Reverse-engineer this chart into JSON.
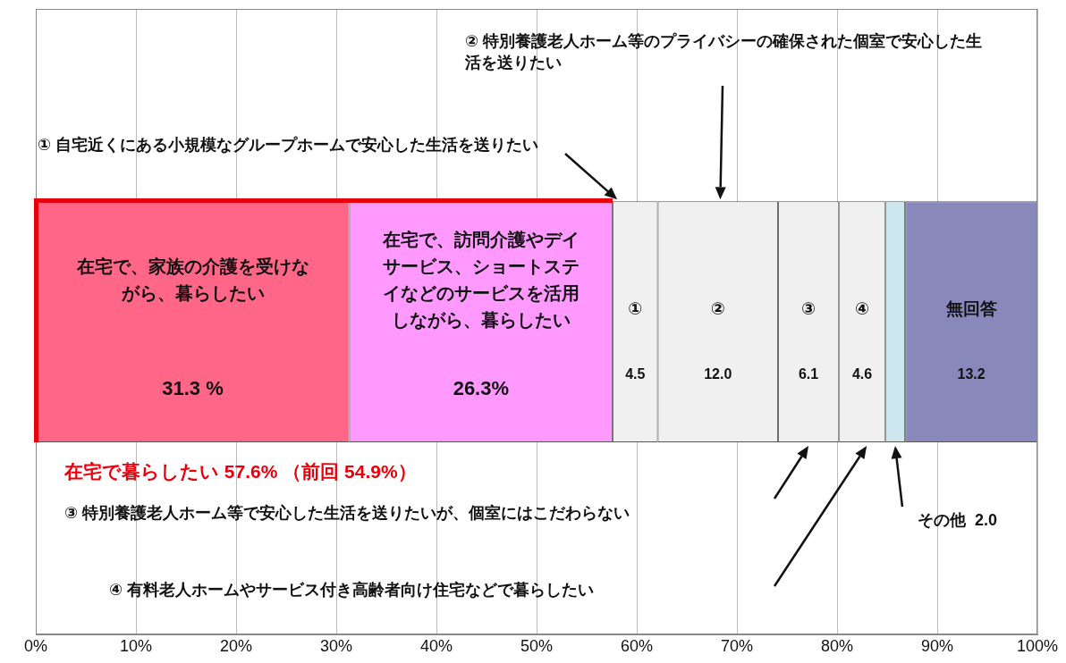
{
  "chart_data": {
    "type": "bar",
    "orientation": "horizontal",
    "stacked": true,
    "categories": [
      null
    ],
    "series": [
      {
        "name": "在宅で、家族の介護を受けながら、暮らしたい",
        "color": "#ff6688",
        "values": [
          31.3
        ],
        "value_labels": [
          "31.3 %"
        ]
      },
      {
        "name": "在宅で、訪問介護やデイサービス、ショートステイなどのサービスを活用しながら、暮らしたい",
        "color": "#ff99ff",
        "values": [
          26.3
        ],
        "value_labels": [
          "26.3%"
        ]
      },
      {
        "name": "①",
        "color": "#f0f0f0",
        "values": [
          4.5
        ],
        "value_labels": [
          "4.5"
        ]
      },
      {
        "name": "②",
        "color": "#f0f0f0",
        "values": [
          12.0
        ],
        "value_labels": [
          "12.0"
        ]
      },
      {
        "name": "③",
        "color": "#f0f0f0",
        "values": [
          6.1
        ],
        "value_labels": [
          "6.1"
        ]
      },
      {
        "name": "④",
        "color": "#f0f0f0",
        "values": [
          4.6
        ],
        "value_labels": [
          "4.6"
        ]
      },
      {
        "name": "その他",
        "color": "#cce8ee",
        "values": [
          2.0
        ],
        "value_labels": [
          "2.0"
        ]
      },
      {
        "name": "無回答",
        "color": "#8888bb",
        "values": [
          13.2
        ],
        "value_labels": [
          "13.2"
        ]
      }
    ],
    "xlim": [
      0,
      100
    ],
    "xticks": [
      {
        "value": 0,
        "label": "0%"
      },
      {
        "value": 10,
        "label": "10%"
      },
      {
        "value": 20,
        "label": "20%"
      },
      {
        "value": 30,
        "label": "30%"
      },
      {
        "value": 40,
        "label": "40%"
      },
      {
        "value": 50,
        "label": "50%"
      },
      {
        "value": 60,
        "label": "60%"
      },
      {
        "value": 70,
        "label": "70%"
      },
      {
        "value": 80,
        "label": "80%"
      },
      {
        "value": 90,
        "label": "90%"
      },
      {
        "value": 100,
        "label": "100%"
      }
    ],
    "grid": "x",
    "legend": false,
    "tick_labels": "x",
    "annotations": [
      "①  自宅近くにある小規模なグループホームで安心した生活を送りたい",
      "②  特別養護老人ホーム等のプライバシーの確保された個室で安心した生活を送りたい",
      "在宅で暮らしたい  57.6%  （前回  54.9%）",
      "③  特別養護老人ホーム等で安心した生活を送りたいが、個室にはこだわらない",
      "④  有料老人ホームやサービス付き高齢者向け住宅などで暮らしたい"
    ]
  }
}
